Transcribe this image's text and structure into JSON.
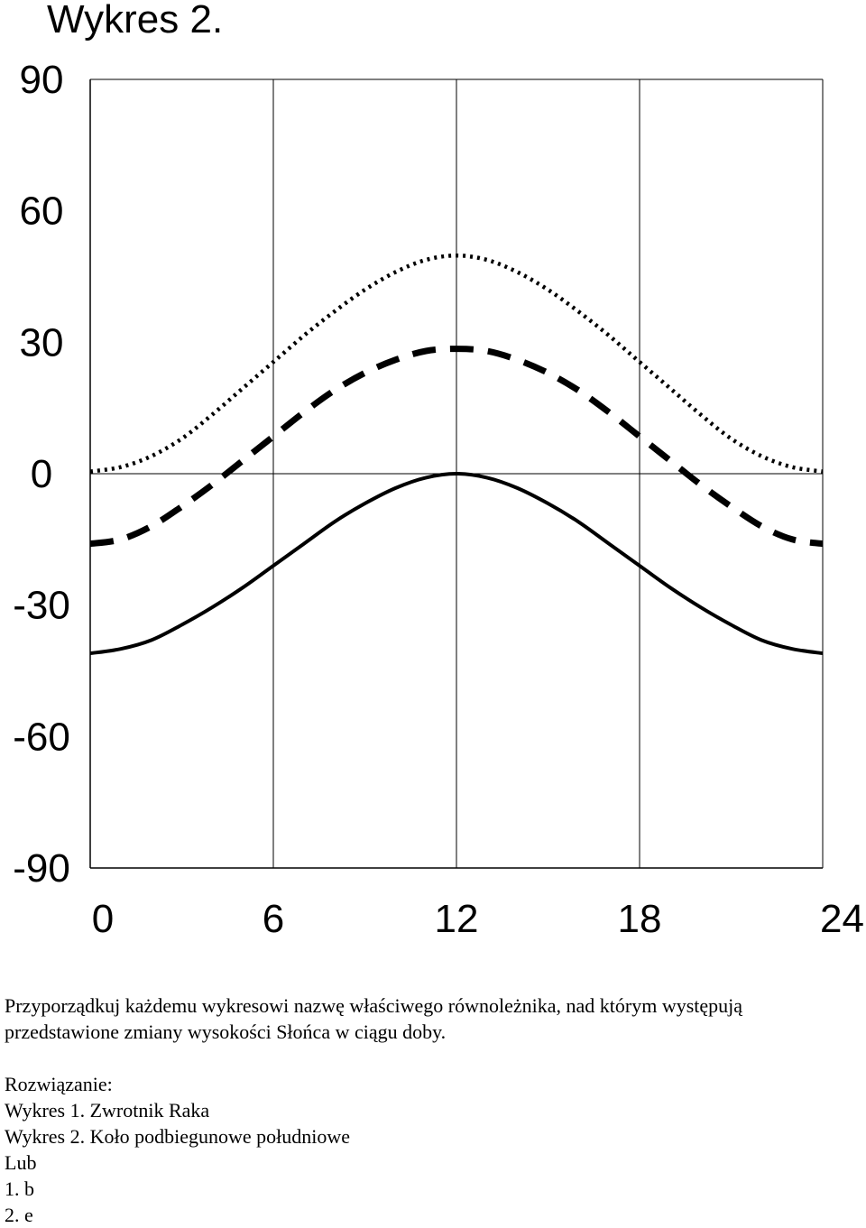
{
  "chart_data": {
    "type": "line",
    "title": "Wykres 2.",
    "xlabel": "",
    "ylabel": "",
    "xlim": [
      0,
      24
    ],
    "ylim": [
      -90,
      90
    ],
    "x_ticks": [
      "0",
      "6",
      "12",
      "18",
      "24"
    ],
    "y_ticks": [
      "90",
      "60",
      "30",
      "0",
      "-30",
      "-60",
      "-90"
    ],
    "grid": "vertical lines at 6, 12, 18; horizontal line at 0",
    "x": [
      0,
      1,
      2,
      3,
      4,
      5,
      6,
      7,
      8,
      9,
      10,
      11,
      12,
      13,
      14,
      15,
      16,
      17,
      18,
      19,
      20,
      21,
      22,
      23,
      24
    ],
    "series": [
      {
        "style": "dotted",
        "values": [
          0.5,
          1.5,
          4,
          8,
          13.5,
          19.5,
          25.5,
          31.5,
          37,
          42,
          46,
          48.8,
          49.8,
          48.8,
          46,
          42,
          37,
          31.5,
          25.5,
          19.5,
          13.5,
          8,
          4,
          1.5,
          0.5
        ]
      },
      {
        "style": "dashed",
        "values": [
          -16,
          -15,
          -12,
          -7.5,
          -2.5,
          3,
          8.5,
          14,
          19,
          23,
          26,
          28,
          28.5,
          28,
          26,
          23,
          19,
          14,
          8.5,
          3,
          -2.5,
          -7.5,
          -12,
          -15,
          -16
        ]
      },
      {
        "style": "solid",
        "values": [
          -41,
          -40,
          -38,
          -34.5,
          -30.5,
          -26,
          -21,
          -16,
          -11,
          -6.8,
          -3.3,
          -0.9,
          0,
          -0.9,
          -3.3,
          -6.8,
          -11,
          -16,
          -21,
          -26,
          -30.5,
          -34.5,
          -38,
          -40,
          -41
        ]
      }
    ],
    "line_color": "#000000"
  },
  "text": {
    "question_line1": "Przyporządkuj każdemu wykresowi nazwę właściwego równoleżnika, nad którym występują",
    "question_line2": "przedstawione zmiany wysokości Słońca w ciągu doby.",
    "solution_label": "Rozwiązanie:",
    "answer1": "Wykres 1. Zwrotnik Raka",
    "answer2": "Wykres 2. Koło podbiegunowe południowe",
    "or_label": "Lub",
    "alt1": "1. b",
    "alt2": "2. e"
  }
}
